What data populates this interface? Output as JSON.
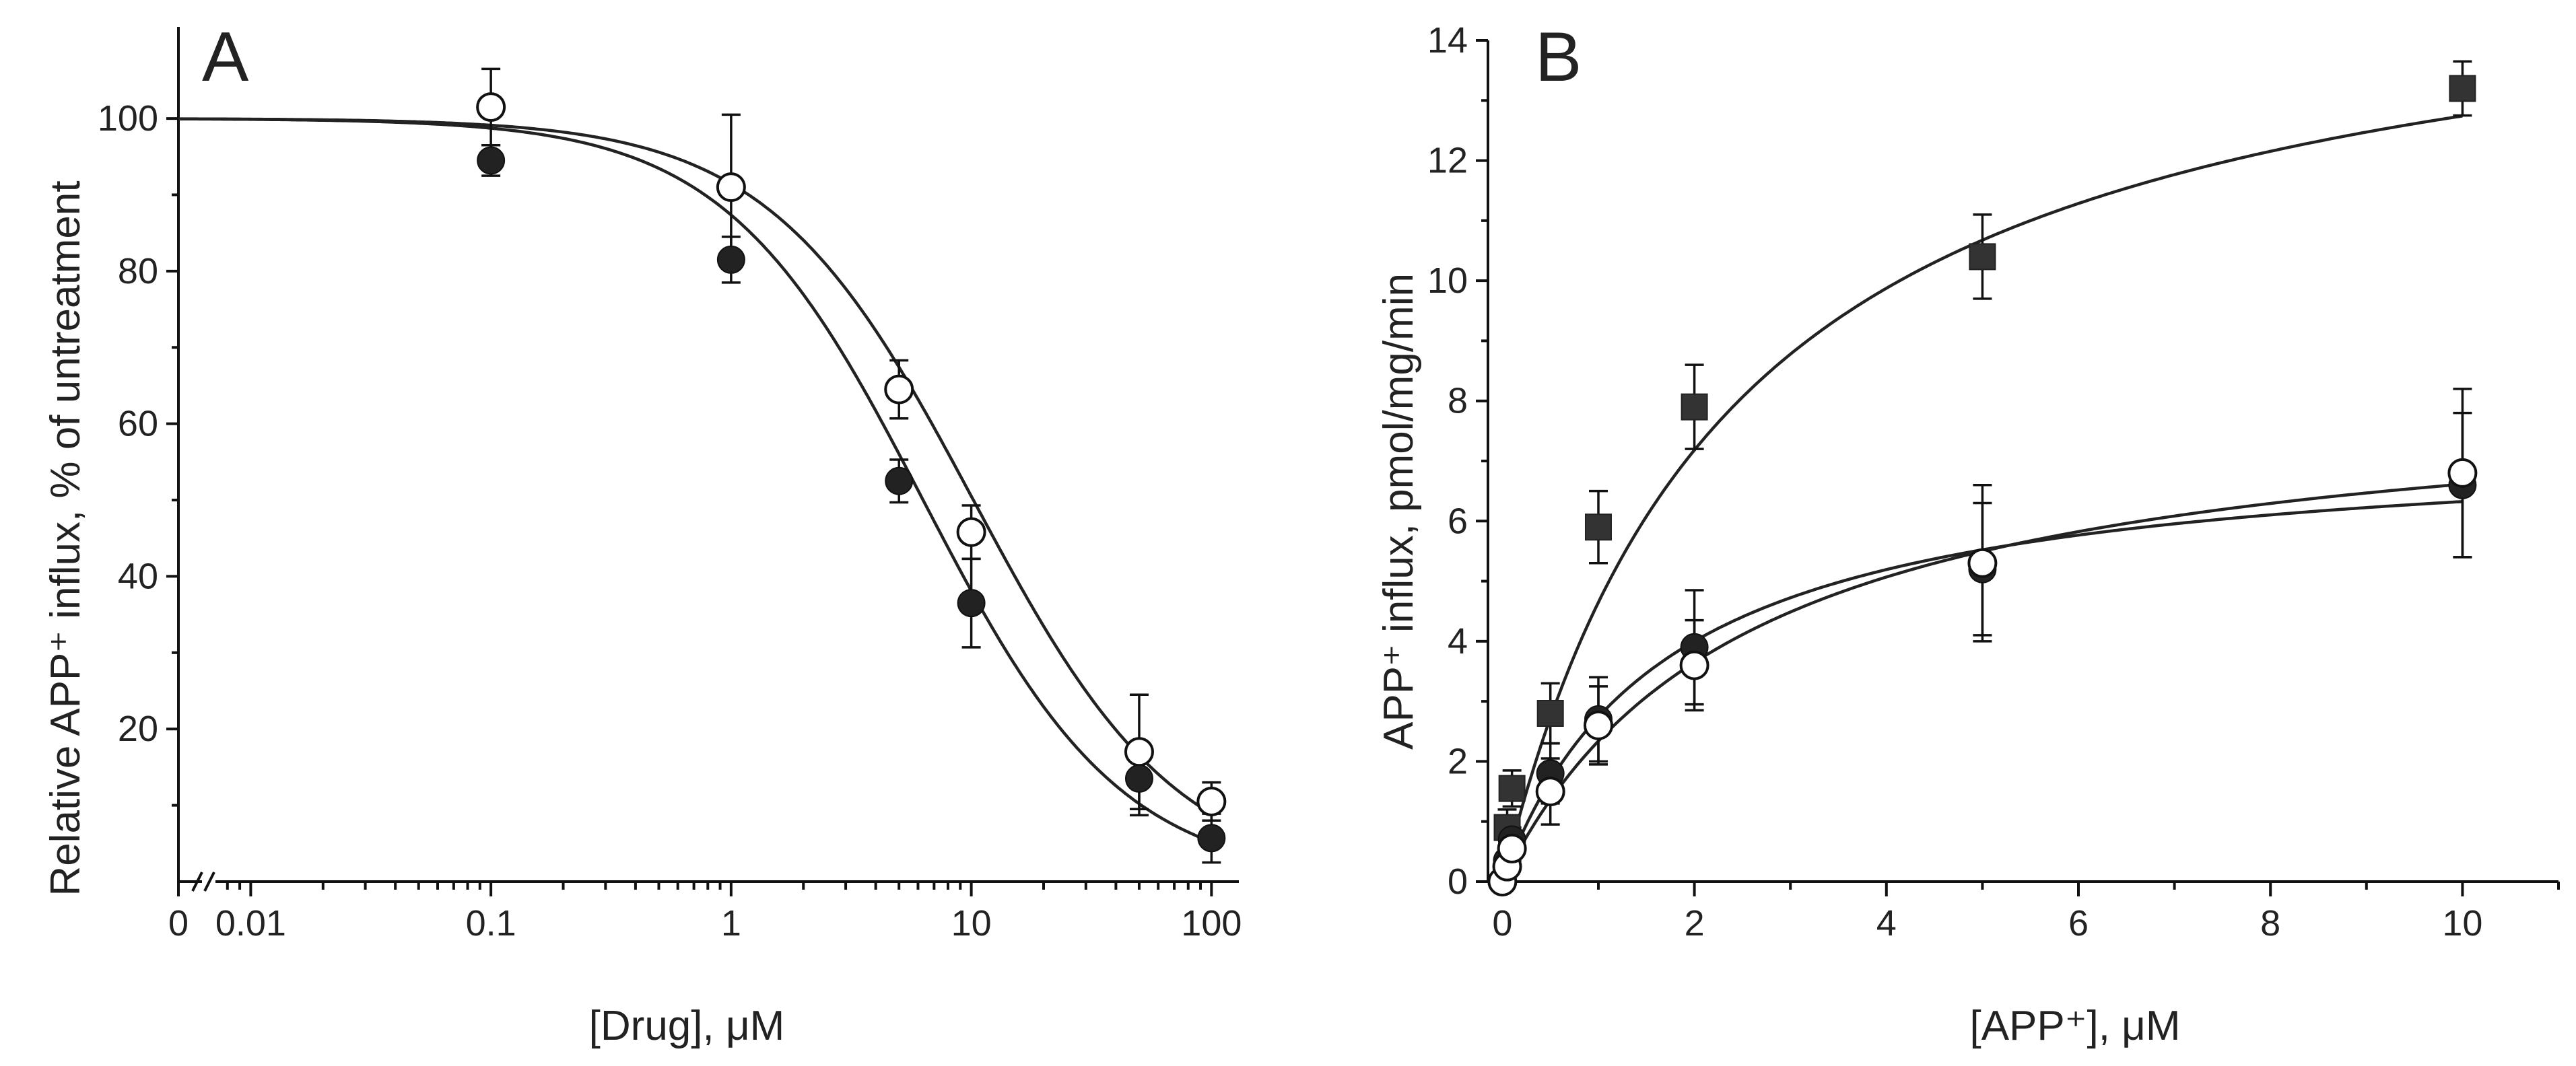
{
  "chart_data": [
    {
      "panel": "A",
      "type": "scatter",
      "title": "",
      "xlabel": "[Drug], μM",
      "ylabel": "Relative APP⁺ influx, % of untreatment",
      "xscale": "log",
      "xlim": [
        0.005,
        130
      ],
      "ylim": [
        0,
        112
      ],
      "x_ticks": [
        "0",
        "0.01",
        "0.1",
        "1",
        "10",
        "100"
      ],
      "y_ticks": [
        "20",
        "40",
        "60",
        "80",
        "100"
      ],
      "axis_break": "x between 0 and 0.01",
      "legend": null,
      "series": [
        {
          "name": "open circles",
          "marker": "open-circle",
          "x": [
            0.1,
            1,
            5,
            10,
            50,
            100
          ],
          "y": [
            101.5,
            91,
            64.5,
            45.8,
            17,
            10.5
          ],
          "err": [
            5,
            9.5,
            3.8,
            3.5,
            7.5,
            2.5
          ],
          "fit": {
            "top": 100,
            "bottom": 0,
            "ic50": 10.2,
            "hill": 1.02
          }
        },
        {
          "name": "filled circles",
          "marker": "filled-circle",
          "x": [
            0.1,
            1,
            5,
            10,
            50,
            100
          ],
          "y": [
            94.5,
            81.5,
            52.5,
            36.5,
            13.5,
            5.7
          ],
          "err": [
            2,
            3,
            2.8,
            5.8,
            4.8,
            3.2
          ],
          "fit": {
            "top": 100,
            "bottom": 0,
            "ic50": 6.3,
            "hill": 1.05
          }
        }
      ]
    },
    {
      "panel": "B",
      "type": "scatter",
      "title": "",
      "xlabel": "[APP⁺], μM",
      "ylabel": "APP⁺ influx, pmol/mg/min",
      "xlim": [
        -0.15,
        11
      ],
      "ylim": [
        0,
        14
      ],
      "x_ticks": [
        "0",
        "2",
        "4",
        "6",
        "8",
        "10"
      ],
      "y_ticks": [
        "0",
        "2",
        "4",
        "6",
        "8",
        "10",
        "12",
        "14"
      ],
      "legend": null,
      "series": [
        {
          "name": "filled squares",
          "marker": "filled-square",
          "x": [
            0.05,
            0.1,
            0.5,
            1,
            2,
            5,
            10
          ],
          "y": [
            0.9,
            1.55,
            2.8,
            5.9,
            7.9,
            10.4,
            13.2
          ],
          "err": [
            0.3,
            0.3,
            0.5,
            0.6,
            0.7,
            0.7,
            0.45
          ],
          "fit": {
            "vmax": 15.8,
            "km": 2.4
          }
        },
        {
          "name": "filled circles",
          "marker": "filled-circle",
          "x": [
            0,
            0.05,
            0.1,
            0.5,
            1,
            2,
            5,
            10
          ],
          "y": [
            0,
            0.35,
            0.7,
            1.8,
            2.7,
            3.9,
            5.2,
            6.6
          ],
          "err": [
            0,
            0.1,
            0.2,
            0.5,
            0.7,
            0.95,
            1.1,
            1.2
          ],
          "fit": {
            "vmax": 7.4,
            "km": 1.7
          }
        },
        {
          "name": "open circles",
          "marker": "open-circle",
          "x": [
            0,
            0.05,
            0.1,
            0.5,
            1,
            2,
            5,
            10
          ],
          "y": [
            0,
            0.25,
            0.55,
            1.5,
            2.6,
            3.6,
            5.3,
            6.8
          ],
          "err": [
            0,
            0.1,
            0.2,
            0.55,
            0.65,
            0.75,
            1.3,
            1.4
          ],
          "fit": {
            "vmax": 8.3,
            "km": 2.55
          }
        }
      ]
    }
  ]
}
